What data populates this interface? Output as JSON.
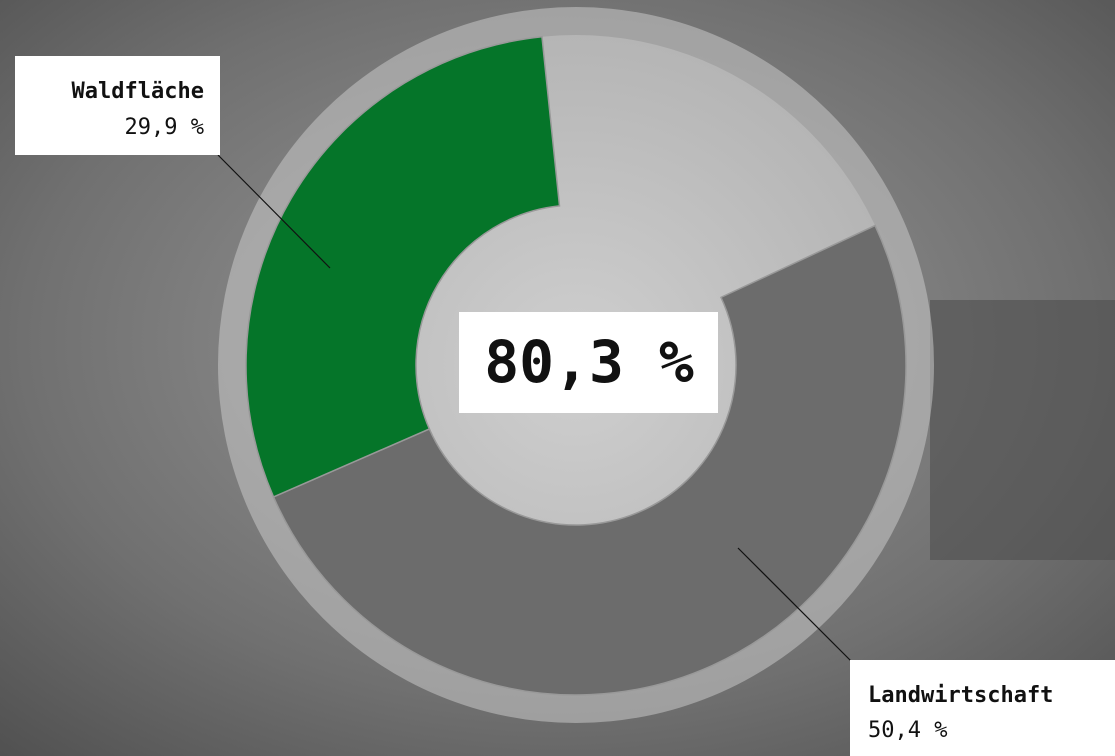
{
  "chart_data": {
    "type": "donut",
    "categories": [
      "Waldfläche",
      "Landwirtschaft"
    ],
    "values": [
      29.9,
      50.4
    ],
    "value_labels": [
      "29,9 %",
      "50,4 %"
    ],
    "colors": [
      "#057529",
      "#6c6c6c"
    ],
    "total": 80.3,
    "total_label": "80,3 %"
  }
}
